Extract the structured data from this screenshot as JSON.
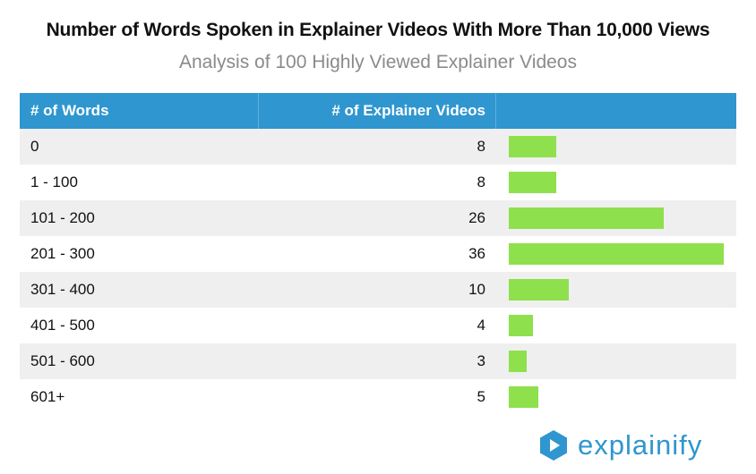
{
  "chart_data": {
    "type": "table",
    "title": "Number of Words Spoken in Explainer Videos With More Than 10,000 Views",
    "subtitle": "Analysis of 100 Highly Viewed Explainer Videos",
    "columns": [
      "# of Words",
      "# of Explainer Videos"
    ],
    "categories": [
      "0",
      "1 - 100",
      "101 - 200",
      "201 - 300",
      "301 - 400",
      "401 - 500",
      "501 - 600",
      "601+"
    ],
    "values": [
      8,
      8,
      26,
      36,
      10,
      4,
      3,
      5
    ],
    "bar_max": 36
  },
  "colors": {
    "header": "#2f96cf",
    "bar": "#8ee04d",
    "row_alt": "#efefef",
    "brand": "#2f96cf"
  },
  "logo": {
    "icon": "play-icon",
    "text": "explainify"
  }
}
